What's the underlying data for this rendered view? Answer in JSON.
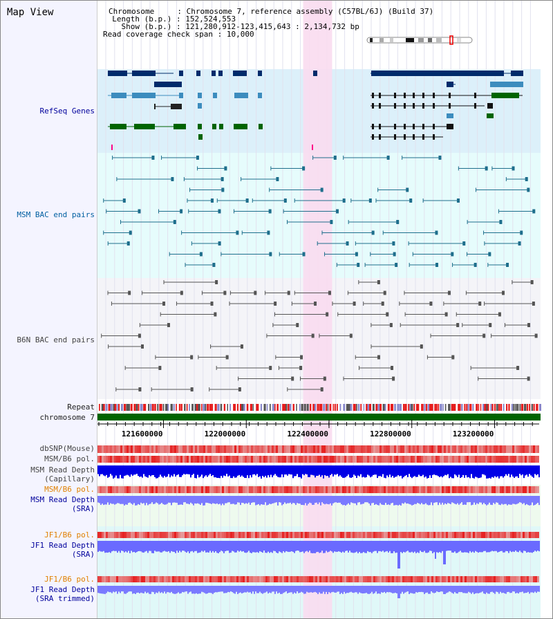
{
  "title": "Map View",
  "header": {
    "chromosome_label": "Chromosome",
    "chromosome_value": "Chromosome 7, reference assembly (C57BL/6J) (Build 37)",
    "length_label": "Length (b.p.)",
    "length_value": "152,524,553",
    "show_label": "Show (b.p.)",
    "show_value": "121,280,912-123,415,643 : 2,134,732 bp",
    "coverage_label": "Read coverage check span",
    "coverage_value": "10,000"
  },
  "tracks": {
    "refseq": "RefSeq Genes",
    "msm_bac": "MSM BAC end pairs",
    "b6n_bac": "B6N BAC end pairs",
    "repeat": "Repeat",
    "chromosome": "chromosome 7",
    "dbsnp": "dbSNP(Mouse)",
    "msm_b6_pol": "MSM/B6 pol.",
    "msm_read_depth_cap_1": "MSM Read Depth",
    "msm_read_depth_cap_2": "(Capillary)",
    "msm_b6_pol_sra": "MSM/B6 pol.",
    "msm_read_depth_sra_1": "MSM Read Depth",
    "msm_read_depth_sra_2": "(SRA)",
    "jf1_b6_pol": "JF1/B6 pol.",
    "jf1_read_depth_sra_1": "JF1 Read Depth",
    "jf1_read_depth_sra_2": "(SRA)",
    "jf1_b6_pol_2": "JF1/B6 pol.",
    "jf1_read_depth_trim_1": "JF1 Read Depth",
    "jf1_read_depth_trim_2": "(SRA trimmed)"
  },
  "axis": {
    "ticks": [
      "121600000",
      "122000000",
      "122400000",
      "122800000",
      "123200000"
    ],
    "tick_values": [
      121600000,
      122000000,
      122400000,
      122800000,
      123200000
    ],
    "view_start": 121280912,
    "view_end": 123415643,
    "highlight_start": 122275000,
    "highlight_end": 122415000
  },
  "colors": {
    "refseq_bg": "#dcf0fa",
    "msm_bg": "#e6fcfc",
    "b6n_bg": "#f4f4f8",
    "highlight": "#fadcf0",
    "chromosome": "#006400",
    "gene_dark": "#002b6b",
    "gene_mid": "#3c8cbe",
    "gene_green": "#006400",
    "msm_line": "#1e6e8c",
    "b6n_line": "#555555",
    "depth_cap": "#0000e6",
    "depth_sra": "#7a7aff",
    "pol_red": "#e61e1e"
  }
}
